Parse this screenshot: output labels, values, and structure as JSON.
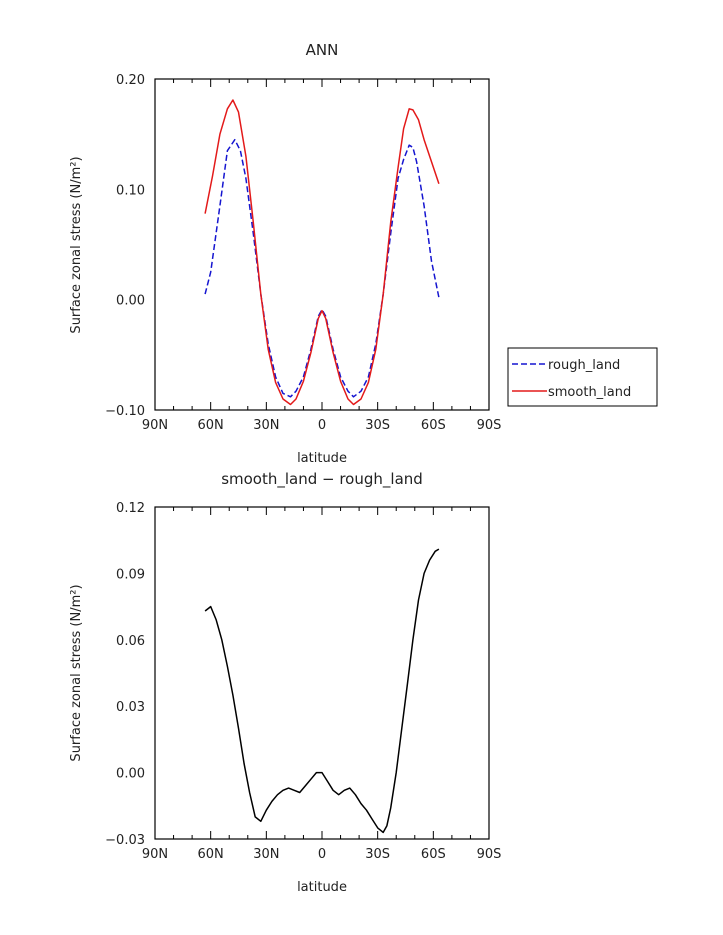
{
  "chart_data": [
    {
      "type": "line",
      "title": "ANN",
      "xlabel": "latitude",
      "ylabel": "Surface zonal stress (N/m²)",
      "ylim": [
        -0.1,
        0.2
      ],
      "xlim": [
        90,
        -90
      ],
      "x_ticks": [
        "90N",
        "60N",
        "30N",
        "0",
        "30S",
        "60S",
        "90S"
      ],
      "y_ticks": [
        "0.20",
        "0.10",
        "0.00",
        "−0.10"
      ],
      "legend_position": "right",
      "series": [
        {
          "name": "rough_land",
          "color": "#1515d0",
          "dash": "dashed",
          "x": [
            63,
            60,
            55,
            51,
            47,
            44,
            41,
            37,
            33,
            29,
            25,
            21,
            17,
            14,
            10,
            6,
            2,
            0,
            -2,
            -6,
            -10,
            -14,
            -17,
            -21,
            -25,
            -29,
            -33,
            -37,
            -41,
            -44,
            -47,
            -49,
            -51,
            -55,
            -59,
            -63
          ],
          "y": [
            0.005,
            0.025,
            0.085,
            0.135,
            0.145,
            0.135,
            0.11,
            0.06,
            0.005,
            -0.04,
            -0.07,
            -0.085,
            -0.088,
            -0.083,
            -0.07,
            -0.045,
            -0.015,
            -0.009,
            -0.015,
            -0.045,
            -0.07,
            -0.083,
            -0.088,
            -0.083,
            -0.07,
            -0.04,
            0.005,
            0.06,
            0.11,
            0.127,
            0.14,
            0.138,
            0.125,
            0.085,
            0.035,
            0.002
          ]
        },
        {
          "name": "smooth_land",
          "color": "#e31a1a",
          "dash": "solid",
          "x": [
            63,
            59,
            55,
            51,
            48,
            45,
            41,
            37,
            33,
            29,
            25,
            21,
            17,
            14,
            10,
            6,
            2,
            0,
            -2,
            -6,
            -10,
            -14,
            -17,
            -21,
            -25,
            -29,
            -33,
            -37,
            -41,
            -44,
            -47,
            -49,
            -52,
            -55,
            -59,
            -63
          ],
          "y": [
            0.078,
            0.112,
            0.15,
            0.173,
            0.181,
            0.17,
            0.13,
            0.07,
            0.005,
            -0.045,
            -0.075,
            -0.09,
            -0.095,
            -0.09,
            -0.074,
            -0.048,
            -0.017,
            -0.01,
            -0.017,
            -0.048,
            -0.074,
            -0.09,
            -0.095,
            -0.09,
            -0.075,
            -0.045,
            0.005,
            0.07,
            0.12,
            0.155,
            0.173,
            0.172,
            0.163,
            0.145,
            0.125,
            0.105
          ]
        }
      ]
    },
    {
      "type": "line",
      "title": "smooth_land − rough_land",
      "xlabel": "latitude",
      "ylabel": "Surface zonal stress (N/m²)",
      "ylim": [
        -0.03,
        0.12
      ],
      "xlim": [
        90,
        -90
      ],
      "x_ticks": [
        "90N",
        "60N",
        "30N",
        "0",
        "30S",
        "60S",
        "90S"
      ],
      "y_ticks": [
        "0.12",
        "0.09",
        "0.06",
        "0.03",
        "0.00",
        "−0.03"
      ],
      "series": [
        {
          "color": "#000000",
          "dash": "solid",
          "x": [
            63,
            60,
            57,
            54,
            51,
            48,
            45,
            42,
            39,
            36,
            33,
            30,
            27,
            24,
            21,
            18,
            15,
            12,
            9,
            6,
            3,
            0,
            -3,
            -6,
            -9,
            -12,
            -15,
            -18,
            -21,
            -24,
            -27,
            -30,
            -33,
            -35,
            -37,
            -40,
            -43,
            -46,
            -49,
            -52,
            -55,
            -58,
            -61,
            -63
          ],
          "y": [
            0.073,
            0.075,
            0.069,
            0.06,
            0.048,
            0.035,
            0.02,
            0.004,
            -0.009,
            -0.02,
            -0.022,
            -0.017,
            -0.013,
            -0.01,
            -0.008,
            -0.007,
            -0.008,
            -0.009,
            -0.006,
            -0.003,
            0.0,
            0.0,
            -0.004,
            -0.008,
            -0.01,
            -0.008,
            -0.007,
            -0.01,
            -0.014,
            -0.017,
            -0.021,
            -0.025,
            -0.027,
            -0.024,
            -0.016,
            0.0,
            0.02,
            0.04,
            0.06,
            0.078,
            0.09,
            0.096,
            0.1,
            0.101
          ]
        }
      ]
    }
  ]
}
